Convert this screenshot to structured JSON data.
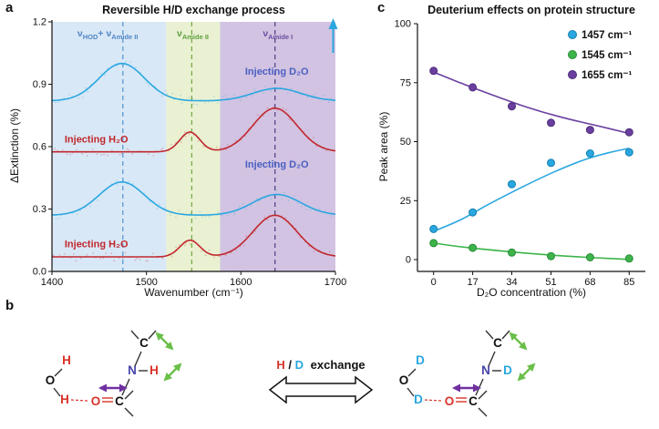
{
  "panel_labels": {
    "a": "a",
    "b": "b",
    "c": "c"
  },
  "colors": {
    "h": "#d9342b",
    "d": "#2aa7e0",
    "n": "#4747aa",
    "carbonyl": "#d9342b",
    "green_arrow": "#6abf4a",
    "purple_arrow": "#7030a0"
  },
  "molecule": {
    "exchange_label": {
      "h": "H",
      "slash": "/",
      "d": "D",
      "suffix": "exchange"
    },
    "atoms": {
      "O": "O",
      "H": "H",
      "D": "D",
      "N": "N",
      "C": "C"
    }
  },
  "chart_data": [
    {
      "id": "panel_a",
      "type": "line",
      "title": "Reversible H/D exchange process",
      "xlabel": "Wavenumber (cm⁻¹)",
      "ylabel": "ΔExtinction (%)",
      "xlim": [
        1400,
        1700
      ],
      "ylim": [
        0,
        1.2
      ],
      "xticks": [
        1400,
        1500,
        1600,
        1700
      ],
      "yticks": [
        0,
        0.3,
        0.6,
        0.9,
        1.2
      ],
      "regions": [
        {
          "name": "hod-plus-amide2-band",
          "from": 1400,
          "to": 1521,
          "color": "#d9e8f6"
        },
        {
          "name": "amide2-band",
          "from": 1521,
          "to": 1578,
          "color": "#e9f1d2"
        },
        {
          "name": "amide1-band",
          "from": 1578,
          "to": 1700,
          "color": "#d2c3e2"
        }
      ],
      "dashed_lines": [
        {
          "x": 1475,
          "color": "#4f93d6"
        },
        {
          "x": 1548,
          "color": "#74a63e"
        },
        {
          "x": 1636,
          "color": "#4a4080"
        }
      ],
      "region_labels": [
        {
          "parts": [
            [
              "ν",
              "HOD"
            ],
            [
              "+ ν",
              "Amide II"
            ]
          ],
          "x": 1459,
          "color": "#4f86c6"
        },
        {
          "parts": [
            [
              "ν",
              "Amide II"
            ]
          ],
          "x": 1549,
          "color": "#5f9e3e"
        },
        {
          "parts": [
            [
              "ν",
              "Amide I"
            ]
          ],
          "x": 1639,
          "color": "#6a4f9e"
        }
      ],
      "curves": [
        {
          "label": "Injecting D₂O",
          "color": "#2aa7e0",
          "label_color": "#4a5fc1",
          "baseline": 0.82,
          "label_x": 1638,
          "label_y": 0.945,
          "peaks": [
            {
              "center": 1474,
              "width": 34,
              "amp": 0.18
            },
            {
              "center": 1638,
              "width": 36,
              "amp": 0.06
            }
          ]
        },
        {
          "label": "Injecting H₂O",
          "color": "#c1272d",
          "label_color": "#c1272d",
          "baseline": 0.575,
          "label_x": 1447,
          "label_y": 0.62,
          "peaks": [
            {
              "center": 1546,
              "width": 15,
              "amp": 0.095
            },
            {
              "center": 1636,
              "width": 33,
              "amp": 0.21
            }
          ]
        },
        {
          "label": "Injecting D₂O",
          "color": "#2aa7e0",
          "label_color": "#4a5fc1",
          "baseline": 0.27,
          "label_x": 1638,
          "label_y": 0.5,
          "peaks": [
            {
              "center": 1474,
              "width": 34,
              "amp": 0.16
            },
            {
              "center": 1638,
              "width": 36,
              "amp": 0.1
            }
          ]
        },
        {
          "label": "Injecting H₂O",
          "color": "#c1272d",
          "label_color": "#c1272d",
          "baseline": 0.07,
          "label_x": 1447,
          "label_y": 0.115,
          "peaks": [
            {
              "center": 1546,
              "width": 15,
              "amp": 0.08
            },
            {
              "center": 1636,
              "width": 33,
              "amp": 0.2
            }
          ]
        }
      ],
      "corner_arrow_color": "#2aa7e0"
    },
    {
      "id": "panel_c",
      "type": "scatter",
      "title": "Deuterium effects on protein structure",
      "xlabel": "D₂O concentration (%)",
      "ylabel": "Peak area (%)",
      "xlim": [
        -7,
        92
      ],
      "ylim": [
        -5,
        100
      ],
      "xticks": [
        0,
        17,
        34,
        51,
        68,
        85
      ],
      "yticks": [
        0,
        25,
        50,
        75,
        100
      ],
      "legend_position": "top-right",
      "series": [
        {
          "name": "1457 cm⁻¹",
          "color": "#2aa7e0",
          "edge": "#1580b0",
          "x": [
            0,
            17,
            34,
            51,
            68,
            85
          ],
          "y": [
            13,
            20,
            32,
            41,
            45,
            45.5
          ],
          "fit": [
            [
              0,
              12
            ],
            [
              12,
              17
            ],
            [
              24,
              23.5
            ],
            [
              38,
              30.5
            ],
            [
              52,
              37
            ],
            [
              66,
              42.5
            ],
            [
              76,
              45.3
            ],
            [
              85,
              47.2
            ]
          ]
        },
        {
          "name": "1545 cm⁻¹",
          "color": "#3cb44a",
          "edge": "#2a8c38",
          "x": [
            0,
            17,
            34,
            51,
            68,
            85
          ],
          "y": [
            7,
            5,
            3,
            1.5,
            1,
            0.5
          ],
          "fit": [
            [
              0,
              7
            ],
            [
              14,
              5.2
            ],
            [
              28,
              3.8
            ],
            [
              42,
              2.6
            ],
            [
              56,
              1.6
            ],
            [
              70,
              0.8
            ],
            [
              85,
              0.1
            ]
          ]
        },
        {
          "name": "1655 cm⁻¹",
          "color": "#6a3fa0",
          "edge": "#4d2d78",
          "x": [
            0,
            17,
            34,
            51,
            68,
            85
          ],
          "y": [
            80,
            73,
            65,
            58,
            55,
            54
          ],
          "fit": [
            [
              0,
              79.5
            ],
            [
              12,
              74.8
            ],
            [
              25,
              70
            ],
            [
              40,
              64.8
            ],
            [
              55,
              60.5
            ],
            [
              70,
              57
            ],
            [
              85,
              53.5
            ]
          ]
        }
      ]
    }
  ]
}
